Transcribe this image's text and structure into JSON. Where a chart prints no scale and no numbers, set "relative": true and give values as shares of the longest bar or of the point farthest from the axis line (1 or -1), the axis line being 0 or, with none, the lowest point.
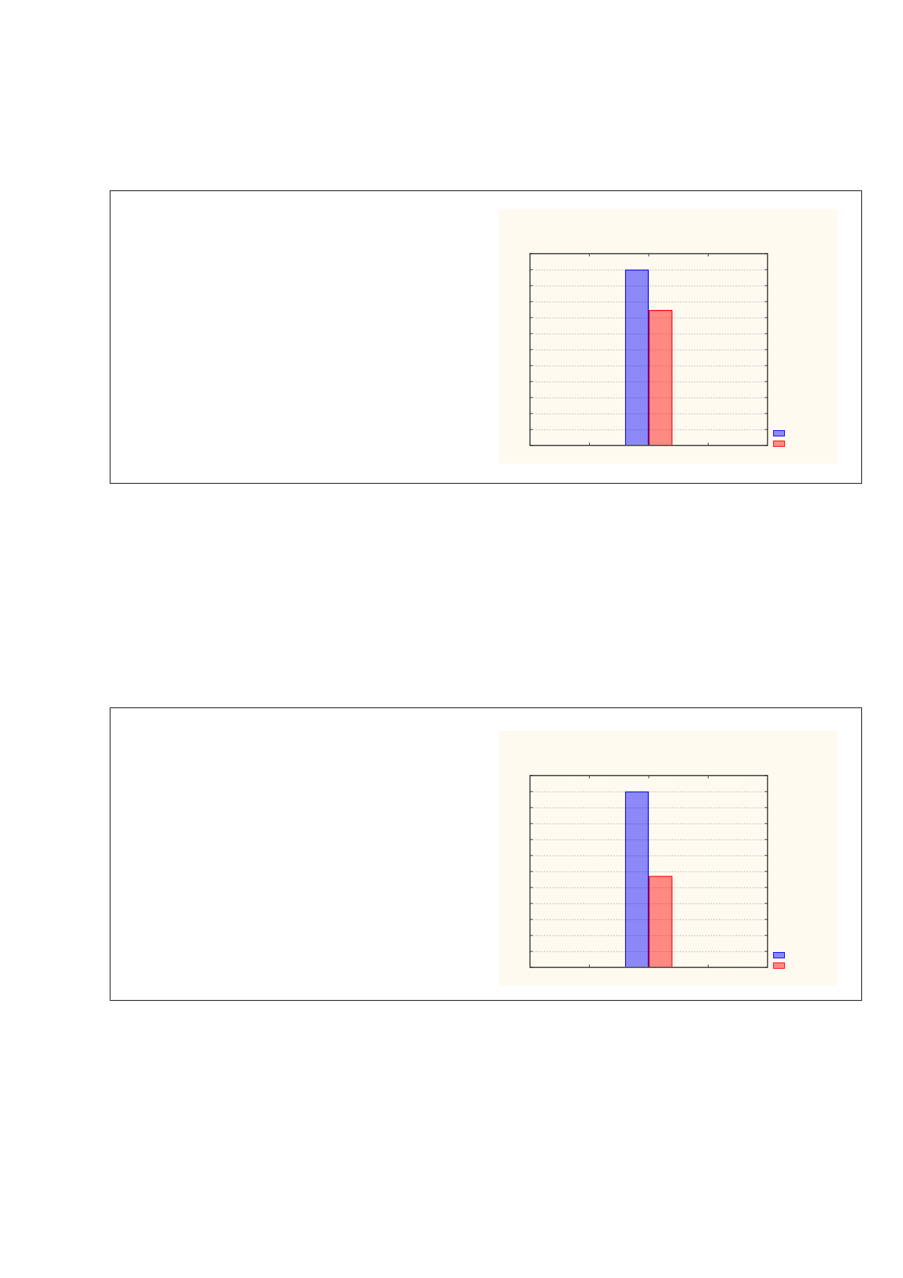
{
  "chart_data": [
    {
      "type": "bar",
      "relative": true,
      "categories": [
        null
      ],
      "grid": "y",
      "series": [
        {
          "color": "#0000ff",
          "values": [
            1
          ]
        },
        {
          "color": "#ff0000",
          "values": [
            0.77
          ]
        }
      ]
    },
    {
      "type": "bar",
      "relative": true,
      "categories": [
        null
      ],
      "grid": "y",
      "series": [
        {
          "color": "#0000ff",
          "values": [
            1
          ]
        },
        {
          "color": "#ff0000",
          "values": [
            0.52
          ]
        }
      ]
    }
  ]
}
